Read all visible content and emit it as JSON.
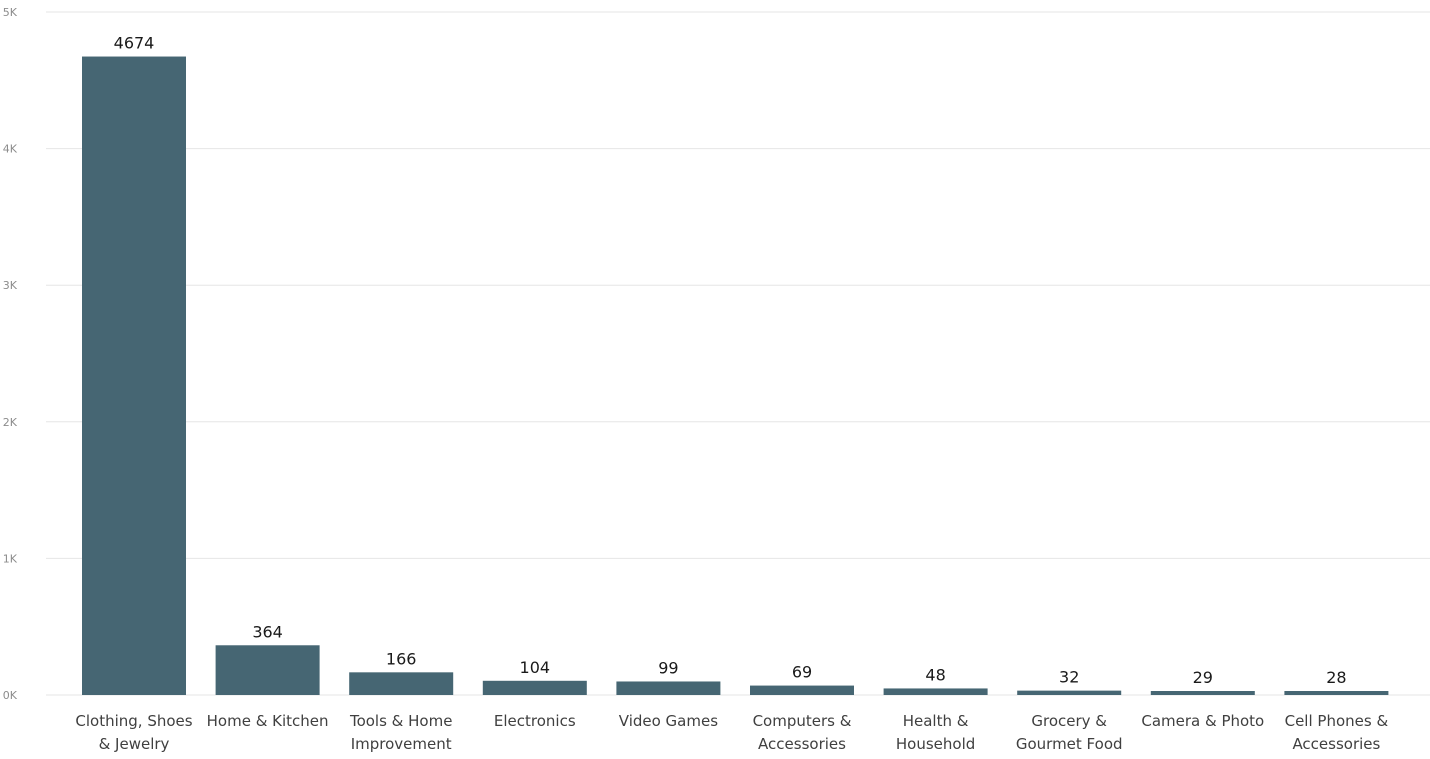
{
  "chart_data": {
    "type": "bar",
    "title": "",
    "xlabel": "",
    "ylabel": "",
    "categories": [
      [
        "Clothing, Shoes",
        "& Jewelry"
      ],
      [
        "Home & Kitchen"
      ],
      [
        "Tools & Home",
        "Improvement"
      ],
      [
        "Electronics"
      ],
      [
        "Video Games"
      ],
      [
        "Computers &",
        "Accessories"
      ],
      [
        "Health &",
        "Household"
      ],
      [
        "Grocery &",
        "Gourmet Food"
      ],
      [
        "Camera & Photo"
      ],
      [
        "Cell Phones &",
        "Accessories"
      ]
    ],
    "values": [
      4674,
      364,
      166,
      104,
      99,
      69,
      48,
      32,
      29,
      28
    ],
    "data_labels": [
      "4674",
      "364",
      "166",
      "104",
      "99",
      "69",
      "48",
      "32",
      "29",
      "28"
    ],
    "ylim": [
      0,
      5000
    ],
    "yticks": [
      0,
      1000,
      2000,
      3000,
      4000,
      5000
    ],
    "ytick_labels": [
      "0K",
      "1K",
      "2K",
      "3K",
      "4K",
      "5K"
    ],
    "grid": true,
    "legend": "none",
    "bar_color": "#466673"
  }
}
